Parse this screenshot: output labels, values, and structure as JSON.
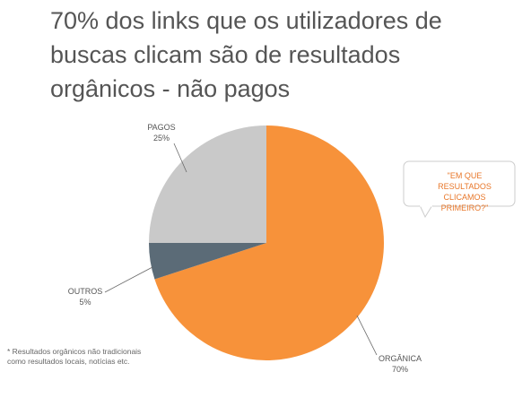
{
  "chart_data": {
    "type": "pie",
    "title": "70% dos links que os utilizadores de buscas clicam são de resultados orgânicos - não pagos",
    "categories": [
      "ORGÂNICA",
      "OUTROS",
      "PAGOS"
    ],
    "values": [
      70,
      5,
      25
    ],
    "value_labels": [
      "70%",
      "5%",
      "25%"
    ],
    "colors": [
      "#f7923a",
      "#5b6b77",
      "#c9c9c9"
    ],
    "annotation": "\"EM QUE RESULTADOS CLICAMOS PRIMEIRO?\"",
    "footnote": "* Resultados orgânicos não tradicionais como resultados locais, notícias etc."
  }
}
